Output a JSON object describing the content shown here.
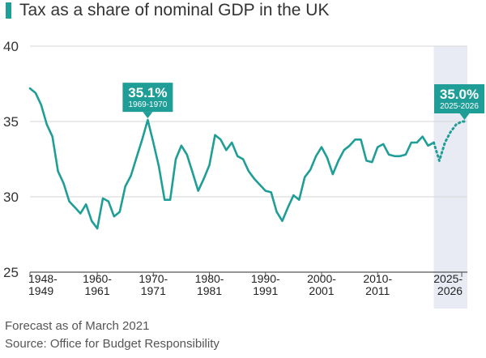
{
  "title": "Tax as a share of nominal GDP in the UK",
  "footnote": "Forecast as of March 2021",
  "source": "Source: Office for Budget Responsibility",
  "colors": {
    "line": "#1f9e97",
    "forecast_band": "#e9ebf4",
    "grid": "#d6d6d6",
    "callout": "#1f9e97"
  },
  "chart_data": {
    "type": "line",
    "xlabel": "",
    "ylabel": "",
    "ylim": [
      25,
      40
    ],
    "yticks": [
      25,
      30,
      35,
      40
    ],
    "xlim": [
      1948,
      2026
    ],
    "xticks": [
      {
        "x": 1948,
        "line1": "1948-",
        "line2": "1949"
      },
      {
        "x": 1960,
        "line1": "1960-",
        "line2": "1961"
      },
      {
        "x": 1970,
        "line1": "1970-",
        "line2": "1971"
      },
      {
        "x": 1980,
        "line1": "1980-",
        "line2": "1981"
      },
      {
        "x": 1990,
        "line1": "1990-",
        "line2": "1991"
      },
      {
        "x": 2000,
        "line1": "2000-",
        "line2": "2001"
      },
      {
        "x": 2010,
        "line1": "2010-",
        "line2": "2011"
      },
      {
        "x": 2025,
        "line1": "2025-",
        "line2": "2026"
      }
    ],
    "forecast_start": 2020,
    "series": [
      {
        "style": "solid",
        "x": [
          1948,
          1949,
          1950,
          1951,
          1952,
          1953,
          1954,
          1955,
          1956,
          1957,
          1958,
          1959,
          1960,
          1961,
          1962,
          1963,
          1964,
          1965,
          1966,
          1967,
          1968,
          1969,
          1970,
          1971,
          1972,
          1973,
          1974,
          1975,
          1976,
          1977,
          1978,
          1979,
          1980,
          1981,
          1982,
          1983,
          1984,
          1985,
          1986,
          1987,
          1988,
          1989,
          1990,
          1991,
          1992,
          1993,
          1994,
          1995,
          1996,
          1997,
          1998,
          1999,
          2000,
          2001,
          2002,
          2003,
          2004,
          2005,
          2006,
          2007,
          2008,
          2009,
          2010,
          2011,
          2012,
          2013,
          2014,
          2015,
          2016,
          2017,
          2018,
          2019,
          2020
        ],
        "values": [
          37.2,
          36.9,
          36.1,
          34.8,
          34.0,
          31.7,
          30.9,
          29.7,
          29.3,
          28.9,
          29.5,
          28.4,
          27.9,
          29.9,
          29.7,
          28.7,
          29.0,
          30.7,
          31.4,
          32.6,
          33.8,
          35.1,
          33.6,
          32.0,
          29.8,
          29.8,
          32.5,
          33.4,
          32.8,
          31.6,
          30.4,
          31.2,
          32.1,
          34.1,
          33.8,
          33.1,
          33.6,
          32.7,
          32.5,
          31.7,
          31.2,
          30.8,
          30.4,
          30.3,
          29.0,
          28.4,
          29.3,
          30.1,
          29.8,
          31.3,
          31.8,
          32.7,
          33.3,
          32.6,
          31.5,
          32.4,
          33.1,
          33.4,
          33.8,
          33.8,
          32.4,
          32.3,
          33.3,
          33.5,
          32.8,
          32.7,
          32.7,
          32.8,
          33.6,
          33.6,
          34.0,
          33.4,
          33.6
        ]
      },
      {
        "style": "dotted",
        "x": [
          2020,
          2021,
          2022,
          2023,
          2024,
          2025,
          2026
        ],
        "values": [
          33.6,
          32.4,
          33.6,
          34.3,
          34.8,
          35.0,
          35.0
        ]
      }
    ],
    "annotations": [
      {
        "x": 1969,
        "y": 35.1,
        "value": "35.1%",
        "period": "1969-1970"
      },
      {
        "x": 2025.5,
        "y": 35.0,
        "value": "35.0%",
        "period": "2025-2026"
      }
    ]
  }
}
